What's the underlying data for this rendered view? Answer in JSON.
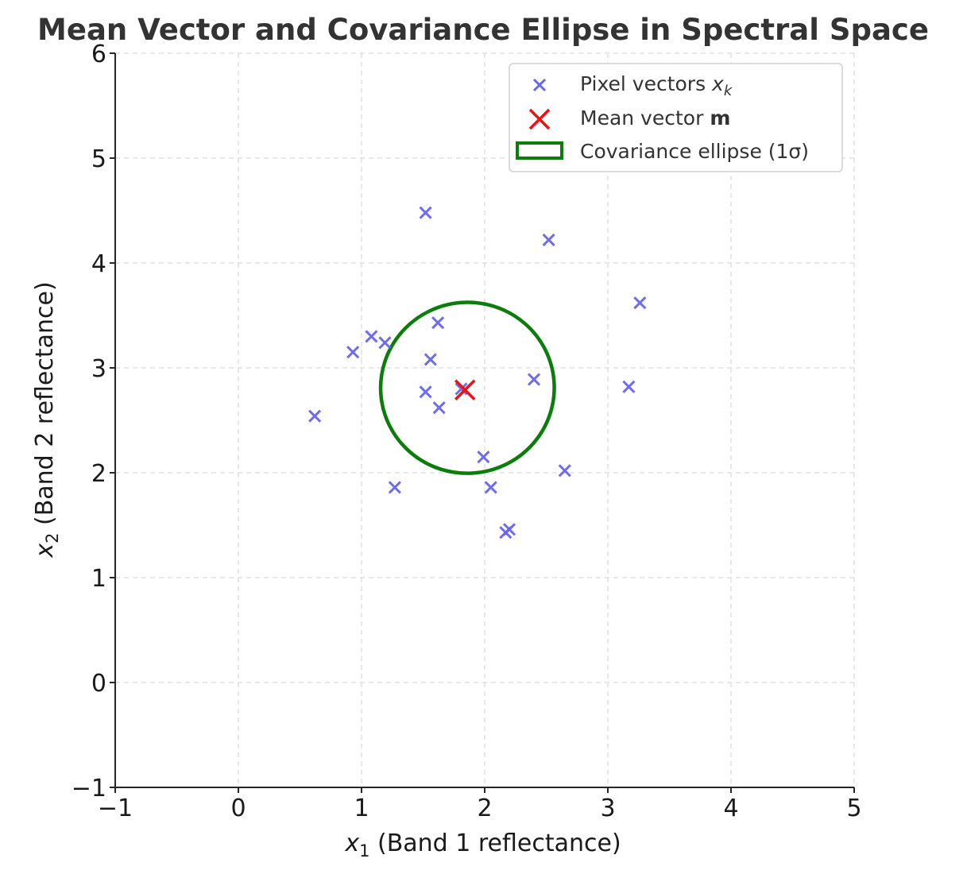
{
  "chart_data": {
    "type": "scatter",
    "title": "Mean Vector and Covariance Ellipse in Spectral Space",
    "xlabel": {
      "var": "x",
      "sub": "1",
      "text": " (Band 1 reflectance)"
    },
    "ylabel": {
      "var": "x",
      "sub": "2",
      "text": " (Band 2 reflectance)"
    },
    "xlim": [
      -1,
      5
    ],
    "ylim": [
      -1,
      6
    ],
    "xticks": [
      "−1",
      "0",
      "1",
      "2",
      "3",
      "4",
      "5"
    ],
    "yticks": [
      "−1",
      "0",
      "1",
      "2",
      "3",
      "4",
      "5",
      "6"
    ],
    "grid": true,
    "legend_position": "upper right",
    "series": [
      {
        "name": "Pixel vectors",
        "name_var": "x",
        "name_sub": "k",
        "marker": "x",
        "color": "#6666ee",
        "points": [
          [
            1.52,
            4.48
          ],
          [
            2.52,
            4.22
          ],
          [
            3.26,
            3.62
          ],
          [
            1.62,
            3.43
          ],
          [
            1.08,
            3.3
          ],
          [
            1.19,
            3.24
          ],
          [
            0.93,
            3.15
          ],
          [
            1.56,
            3.08
          ],
          [
            2.4,
            2.89
          ],
          [
            3.17,
            2.82
          ],
          [
            1.81,
            2.8
          ],
          [
            1.52,
            2.77
          ],
          [
            1.63,
            2.62
          ],
          [
            0.62,
            2.54
          ],
          [
            1.99,
            2.15
          ],
          [
            2.65,
            2.02
          ],
          [
            1.27,
            1.86
          ],
          [
            2.05,
            1.86
          ],
          [
            2.2,
            1.46
          ],
          [
            2.17,
            1.43
          ]
        ]
      },
      {
        "name": "Mean vector",
        "name_bold": "m",
        "marker": "x",
        "color": "#ee1111",
        "points": [
          [
            1.84,
            2.79
          ]
        ]
      },
      {
        "name": "Covariance ellipse (1σ)",
        "type": "ellipse",
        "color": "#0a7d0a",
        "center": [
          1.86,
          2.81
        ],
        "width": 1.41,
        "height": 1.63,
        "angle_deg": 4
      }
    ]
  }
}
